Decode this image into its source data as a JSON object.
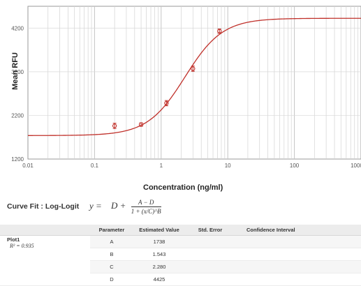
{
  "chart_data": {
    "type": "scatter",
    "title": "",
    "xlabel": "Concentration (ng/ml)",
    "ylabel": "Mean RFU",
    "x_scale": "log",
    "xlim": [
      0.01,
      1000
    ],
    "ylim": [
      1200,
      4700
    ],
    "x_ticks": [
      "0.01",
      "0.1",
      "1",
      "10",
      "100",
      "1000"
    ],
    "y_ticks": [
      "1200",
      "2200",
      "3200",
      "4200"
    ],
    "grid": true,
    "series": [
      {
        "points": [
          {
            "x": 0.2,
            "y": 1960,
            "err": 60
          },
          {
            "x": 0.5,
            "y": 1990,
            "err": 40
          },
          {
            "x": 1.2,
            "y": 2480,
            "err": 60
          },
          {
            "x": 3.0,
            "y": 3270,
            "err": 60
          },
          {
            "x": 7.5,
            "y": 4130,
            "err": 50
          }
        ]
      }
    ],
    "fit_params": {
      "A": 1738,
      "B": 1.543,
      "C": 2.28,
      "D": 4425
    },
    "colors": {
      "curve": "#c0302a",
      "points": "#c0302a",
      "grid": "#d3d3d3"
    }
  },
  "curve_fit": {
    "label": "Curve Fit : Log-Logit",
    "equation_lhs": "y =",
    "equation_d": "D  +",
    "equation_num": "A − D",
    "equation_den": "1 + (x/C)^B"
  },
  "table": {
    "headers": [
      "",
      "Parameter",
      "Estimated Value",
      "Std. Error",
      "Confidence Interval"
    ],
    "plot_label": "Plot1",
    "r2_label": "R² = 0.935",
    "rows": [
      {
        "param": "A",
        "value": "1738",
        "stderr": "",
        "ci": ""
      },
      {
        "param": "B",
        "value": "1.543",
        "stderr": "",
        "ci": ""
      },
      {
        "param": "C",
        "value": "2.280",
        "stderr": "",
        "ci": ""
      },
      {
        "param": "D",
        "value": "4425",
        "stderr": "",
        "ci": ""
      }
    ]
  }
}
